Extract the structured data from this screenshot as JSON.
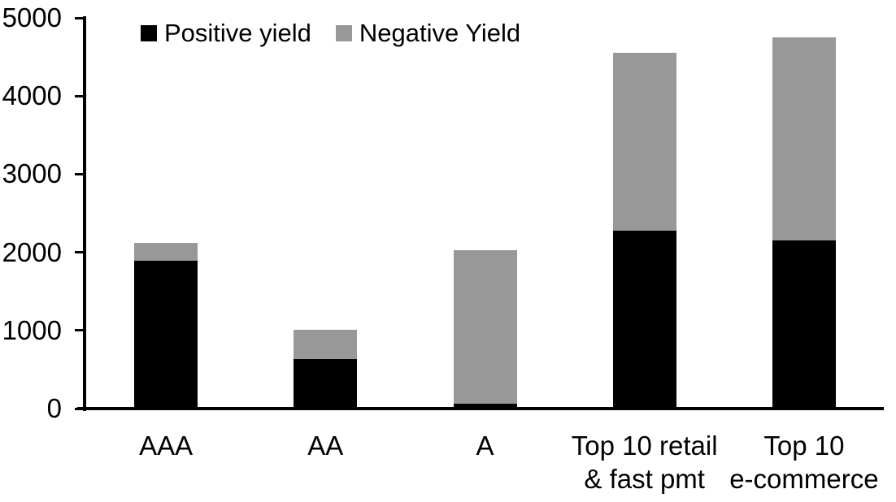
{
  "chart_data": {
    "type": "bar",
    "stacked": true,
    "title": "",
    "xlabel": "",
    "ylabel": "",
    "categories": [
      "AAA",
      "AA",
      "A",
      "Top 10 retail\n& fast pmt",
      "Top 10\ne-commerce"
    ],
    "series": [
      {
        "name": "Positive yield",
        "color": "#000000",
        "values": [
          1890,
          630,
          60,
          2280,
          2150
        ]
      },
      {
        "name": "Negative Yield",
        "color": "#989898",
        "values": [
          230,
          380,
          1970,
          2270,
          2600
        ]
      }
    ],
    "totals": [
      2120,
      1010,
      2030,
      4550,
      4750
    ],
    "ylim": [
      0,
      5000
    ],
    "yticks": [
      0,
      1000,
      2000,
      3000,
      4000,
      5000
    ],
    "grid": false,
    "legend_position": "top-left",
    "axis_color": "#000000",
    "background": "#ffffff"
  }
}
